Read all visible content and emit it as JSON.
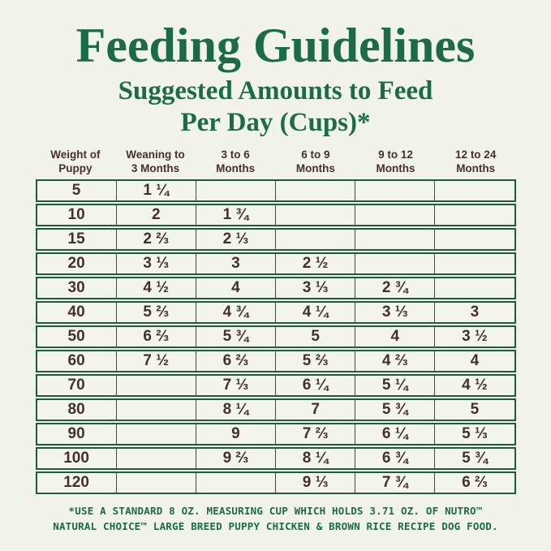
{
  "colors": {
    "background": "#f1f2e9",
    "title_green": "#1b6b48",
    "table_border_green": "#1e5a3e",
    "table_text_brown": "#44302b"
  },
  "title": "Feeding Guidelines",
  "subtitle": {
    "line1": "Suggested Amounts to Feed",
    "line2": "Per Day (Cups)*"
  },
  "table": {
    "headers": [
      {
        "line1": "Weight of",
        "line2": "Puppy"
      },
      {
        "line1": "Weaning to",
        "line2": "3 Months"
      },
      {
        "line1": "3 to 6",
        "line2": "Months"
      },
      {
        "line1": "6 to 9",
        "line2": "Months"
      },
      {
        "line1": "9 to 12",
        "line2": "Months"
      },
      {
        "line1": "12 to 24",
        "line2": "Months"
      }
    ]
  },
  "chart_data": {
    "type": "table",
    "title": "Feeding Guidelines",
    "subtitle": "Suggested Amounts to Feed Per Day (Cups)*",
    "columns": [
      "Weight of Puppy",
      "Weaning to 3 Months",
      "3 to 6 Months",
      "6 to 9 Months",
      "9 to 12 Months",
      "12 to 24 Months"
    ],
    "rows": [
      [
        "5",
        "1 ¼",
        "",
        "",
        "",
        ""
      ],
      [
        "10",
        "2",
        "1 ¾",
        "",
        "",
        ""
      ],
      [
        "15",
        "2 ⅔",
        "2 ⅓",
        "",
        "",
        ""
      ],
      [
        "20",
        "3 ⅓",
        "3",
        "2 ½",
        "",
        ""
      ],
      [
        "30",
        "4 ½",
        "4",
        "3 ⅓",
        "2 ¾",
        ""
      ],
      [
        "40",
        "5 ⅔",
        "4 ¾",
        "4 ¼",
        "3 ⅓",
        "3"
      ],
      [
        "50",
        "6 ⅔",
        "5 ¾",
        "5",
        "4",
        "3 ½"
      ],
      [
        "60",
        "7 ½",
        "6 ⅔",
        "5 ⅔",
        "4 ⅔",
        "4"
      ],
      [
        "70",
        "",
        "7 ⅓",
        "6 ¼",
        "5 ¼",
        "4 ½"
      ],
      [
        "80",
        "",
        "8 ¼",
        "7",
        "5 ¾",
        "5"
      ],
      [
        "90",
        "",
        "9",
        "7 ⅔",
        "6 ¼",
        "5 ⅓"
      ],
      [
        "100",
        "",
        "9 ⅔",
        "8 ¼",
        "6 ¾",
        "5 ¾"
      ],
      [
        "120",
        "",
        "",
        "9 ⅓",
        "7 ¾",
        "6 ⅔"
      ]
    ]
  },
  "footnote": {
    "line1": "*USE A STANDARD 8 OZ. MEASURING CUP WHICH HOLDS 3.71 OZ. OF NUTRO™",
    "line2": "NATURAL CHOICE™ LARGE BREED PUPPY CHICKEN & BROWN RICE RECIPE DOG FOOD."
  }
}
